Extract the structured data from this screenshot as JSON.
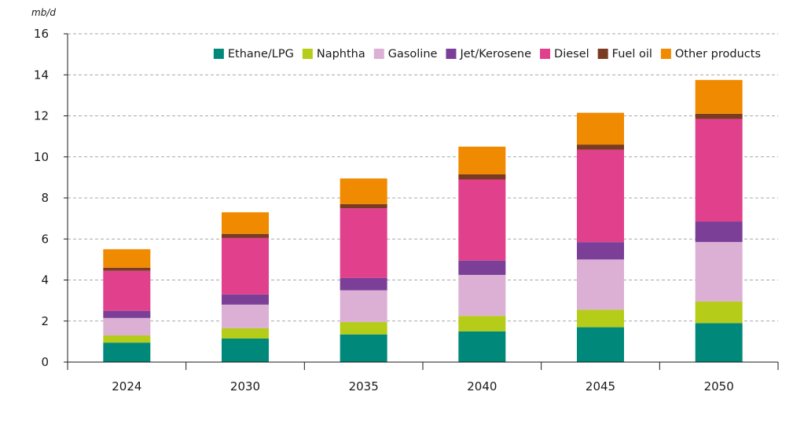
{
  "chart_data": {
    "type": "bar",
    "stacked": true,
    "unit_label": "mb/d",
    "categories": [
      "2024",
      "2030",
      "2035",
      "2040",
      "2045",
      "2050"
    ],
    "ylim": [
      0,
      16
    ],
    "yticks": [
      0,
      2,
      4,
      6,
      8,
      10,
      12,
      14,
      16
    ],
    "grid": "horizontal dashed",
    "legend_position": "top-right",
    "series": [
      {
        "name": "Ethane/LPG",
        "color": "#00897b",
        "values": [
          0.95,
          1.15,
          1.35,
          1.5,
          1.7,
          1.9
        ]
      },
      {
        "name": "Naphtha",
        "color": "#b5cc18",
        "values": [
          0.35,
          0.5,
          0.6,
          0.75,
          0.85,
          1.05
        ]
      },
      {
        "name": "Gasoline",
        "color": "#dcb0d4",
        "values": [
          0.85,
          1.15,
          1.55,
          2.0,
          2.45,
          2.9
        ]
      },
      {
        "name": "Jet/Kerosene",
        "color": "#7b3f98",
        "values": [
          0.35,
          0.5,
          0.6,
          0.7,
          0.85,
          1.0
        ]
      },
      {
        "name": "Diesel",
        "color": "#e0408c",
        "values": [
          1.95,
          2.75,
          3.4,
          3.95,
          4.5,
          5.0
        ]
      },
      {
        "name": "Fuel oil",
        "color": "#7a3b20",
        "values": [
          0.15,
          0.2,
          0.2,
          0.25,
          0.25,
          0.25
        ]
      },
      {
        "name": "Other products",
        "color": "#f08a00",
        "values": [
          0.9,
          1.05,
          1.25,
          1.35,
          1.55,
          1.65
        ]
      }
    ]
  }
}
